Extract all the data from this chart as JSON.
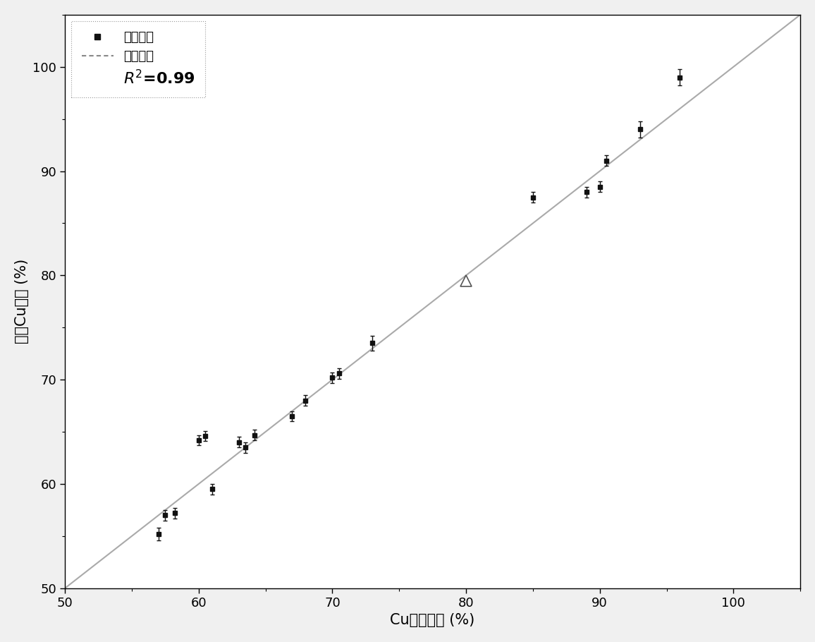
{
  "xlabel": "Cu名义浓度 (%)",
  "ylabel": "预测Cu浓度 (%)",
  "xlim": [
    50,
    105
  ],
  "ylim": [
    50,
    105
  ],
  "xticks": [
    50,
    60,
    70,
    80,
    90,
    100
  ],
  "yticks": [
    50,
    60,
    70,
    80,
    90,
    100
  ],
  "line_x": [
    50,
    105
  ],
  "line_y": [
    50,
    105
  ],
  "line_color": "#aaaaaa",
  "background_color": "#ffffff",
  "scatter_color": "#111111",
  "scatter_points": [
    [
      57.0,
      55.2
    ],
    [
      57.5,
      57.0
    ],
    [
      58.2,
      57.2
    ],
    [
      60.0,
      64.2
    ],
    [
      60.5,
      64.6
    ],
    [
      61.0,
      59.5
    ],
    [
      63.0,
      64.0
    ],
    [
      63.5,
      63.5
    ],
    [
      64.2,
      64.7
    ],
    [
      67.0,
      66.5
    ],
    [
      68.0,
      68.0
    ],
    [
      70.0,
      70.2
    ],
    [
      70.5,
      70.6
    ],
    [
      73.0,
      73.5
    ],
    [
      85.0,
      87.5
    ],
    [
      89.0,
      88.0
    ],
    [
      90.0,
      88.5
    ],
    [
      90.5,
      91.0
    ],
    [
      93.0,
      94.0
    ],
    [
      96.0,
      99.0
    ]
  ],
  "scatter_xerr": [
    0.0,
    0.0,
    0.0,
    0.0,
    0.0,
    0.0,
    0.0,
    0.0,
    0.0,
    0.0,
    0.0,
    0.0,
    0.0,
    0.0,
    0.0,
    0.0,
    0.0,
    0.0,
    0.0,
    0.0
  ],
  "scatter_yerr": [
    0.6,
    0.5,
    0.5,
    0.5,
    0.5,
    0.5,
    0.5,
    0.5,
    0.5,
    0.5,
    0.5,
    0.5,
    0.5,
    0.7,
    0.5,
    0.5,
    0.5,
    0.5,
    0.8,
    0.8
  ],
  "triangle_point": [
    80.0,
    79.5
  ],
  "triangle_color": "#555555",
  "legend_label1": "定标样品",
  "legend_label2": "预测样品",
  "r_squared_text": "$R^2$=0.99",
  "font_size": 15,
  "tick_font_size": 13,
  "legend_fontsize": 13
}
